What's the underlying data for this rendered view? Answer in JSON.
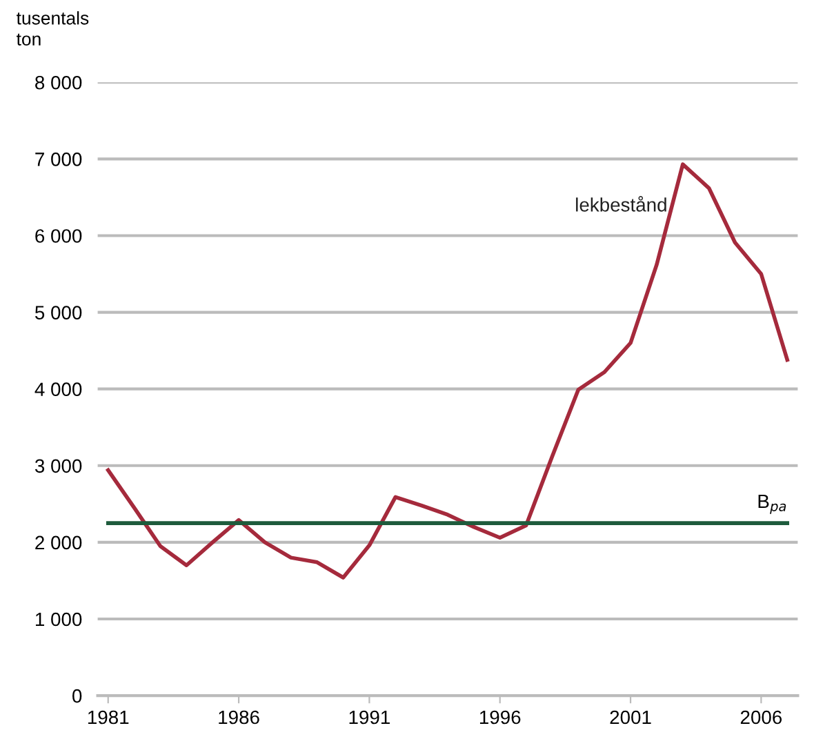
{
  "chart_data": {
    "type": "line",
    "ylabel": "tusentals\nton",
    "x": [
      1981,
      1982,
      1983,
      1984,
      1985,
      1986,
      1987,
      1988,
      1989,
      1990,
      1991,
      1992,
      1993,
      1994,
      1995,
      1996,
      1997,
      1998,
      1999,
      2000,
      2001,
      2002,
      2003,
      2004,
      2005,
      2006,
      2007
    ],
    "series": [
      {
        "name": "lekbestånd",
        "color": "#a52a3c",
        "values": [
          2940,
          2450,
          1950,
          1700,
          2000,
          2290,
          2000,
          1800,
          1740,
          1540,
          1960,
          2590,
          2480,
          2360,
          2200,
          2060,
          2220,
          3120,
          3990,
          4220,
          4600,
          5620,
          6930,
          6620,
          5910,
          5500,
          4380
        ]
      }
    ],
    "ref_lines": [
      {
        "axis": "y",
        "value": 2250,
        "label": "B$_{pa}$",
        "color": "#1e5b3c"
      }
    ],
    "xlim": [
      1980.6,
      2007.4
    ],
    "xticks": [
      1981,
      1986,
      1991,
      1996,
      2001,
      2006
    ],
    "ylim": [
      0,
      8000
    ],
    "yticks": [
      {
        "value": 0,
        "label": "0"
      },
      {
        "value": 1000,
        "label": "1 000"
      },
      {
        "value": 2000,
        "label": "2 000"
      },
      {
        "value": 3000,
        "label": "3 000"
      },
      {
        "value": 4000,
        "label": "4 000"
      },
      {
        "value": 5000,
        "label": "5 000"
      },
      {
        "value": 6000,
        "label": "6 000"
      },
      {
        "value": 7000,
        "label": "7 000"
      },
      {
        "value": 8000,
        "label": "8 000"
      }
    ],
    "grid": "y",
    "legend": false,
    "marker": "none",
    "line_style": "solid"
  }
}
